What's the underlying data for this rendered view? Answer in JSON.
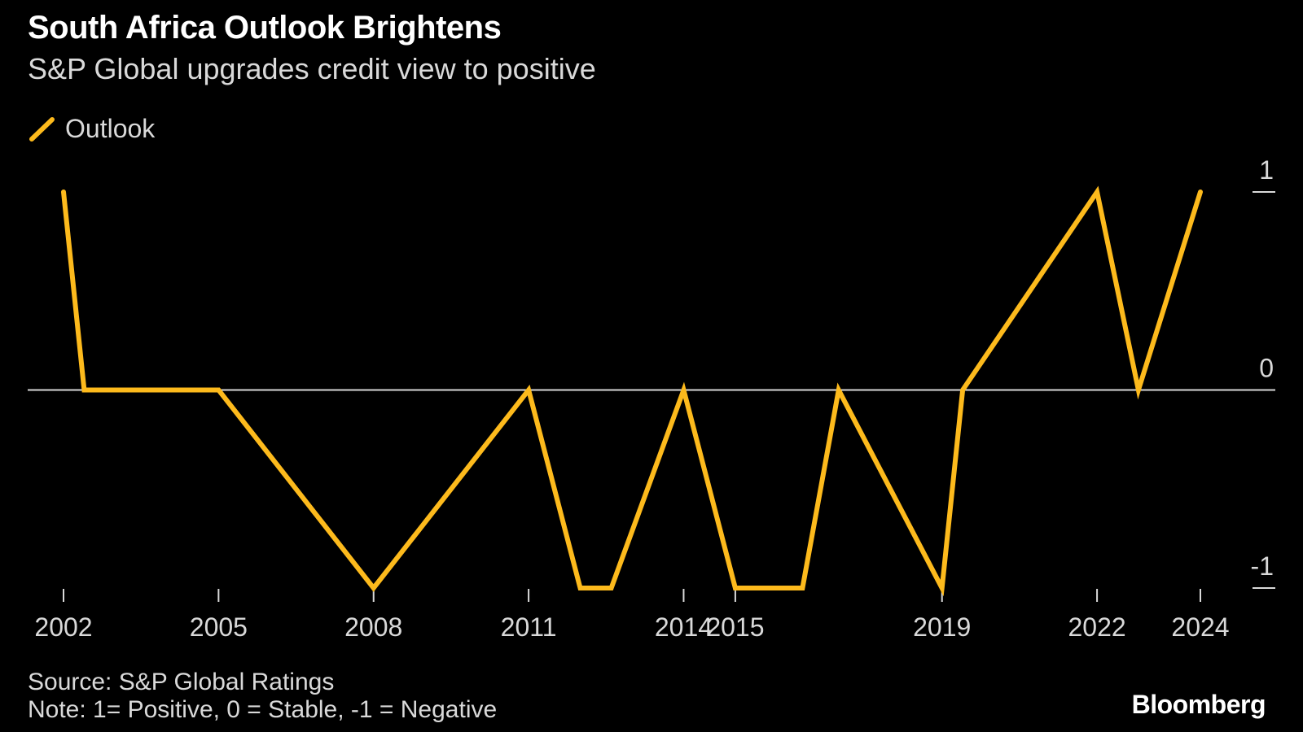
{
  "title": "South Africa Outlook Brightens",
  "subtitle": "S&P Global upgrades credit view to positive",
  "source": "Source: S&P Global Ratings",
  "note": "Note: 1= Positive, 0 = Stable, -1 = Negative",
  "brand": "Bloomberg",
  "colors": {
    "background": "#000000",
    "line": "#FDBA1C",
    "axis": "#d9d9d9"
  },
  "chart_data": {
    "type": "line",
    "title": "South Africa Outlook Brightens",
    "subtitle": "S&P Global upgrades credit view to positive",
    "xlabel": "",
    "ylabel": "",
    "ylim": [
      -1,
      1
    ],
    "xlim": [
      2002,
      2024
    ],
    "grid": false,
    "legend": "top-left",
    "x_ticks": [
      "2002",
      "2005",
      "2008",
      "2011",
      "2014",
      "2015",
      "2019",
      "2022",
      "2024"
    ],
    "y_ticks": [
      "1",
      "0",
      "-1"
    ],
    "series": [
      {
        "name": "Outlook",
        "points": [
          {
            "x": 2002.0,
            "y": 1
          },
          {
            "x": 2002.4,
            "y": 0
          },
          {
            "x": 2005.0,
            "y": 0
          },
          {
            "x": 2008.0,
            "y": -1
          },
          {
            "x": 2011.0,
            "y": 0
          },
          {
            "x": 2012.0,
            "y": -1
          },
          {
            "x": 2012.6,
            "y": -1
          },
          {
            "x": 2014.0,
            "y": 0
          },
          {
            "x": 2015.0,
            "y": -1
          },
          {
            "x": 2016.3,
            "y": -1
          },
          {
            "x": 2017.0,
            "y": 0
          },
          {
            "x": 2019.0,
            "y": -1
          },
          {
            "x": 2019.4,
            "y": 0
          },
          {
            "x": 2022.0,
            "y": 1
          },
          {
            "x": 2022.8,
            "y": 0
          },
          {
            "x": 2024.0,
            "y": 1
          }
        ]
      }
    ]
  }
}
